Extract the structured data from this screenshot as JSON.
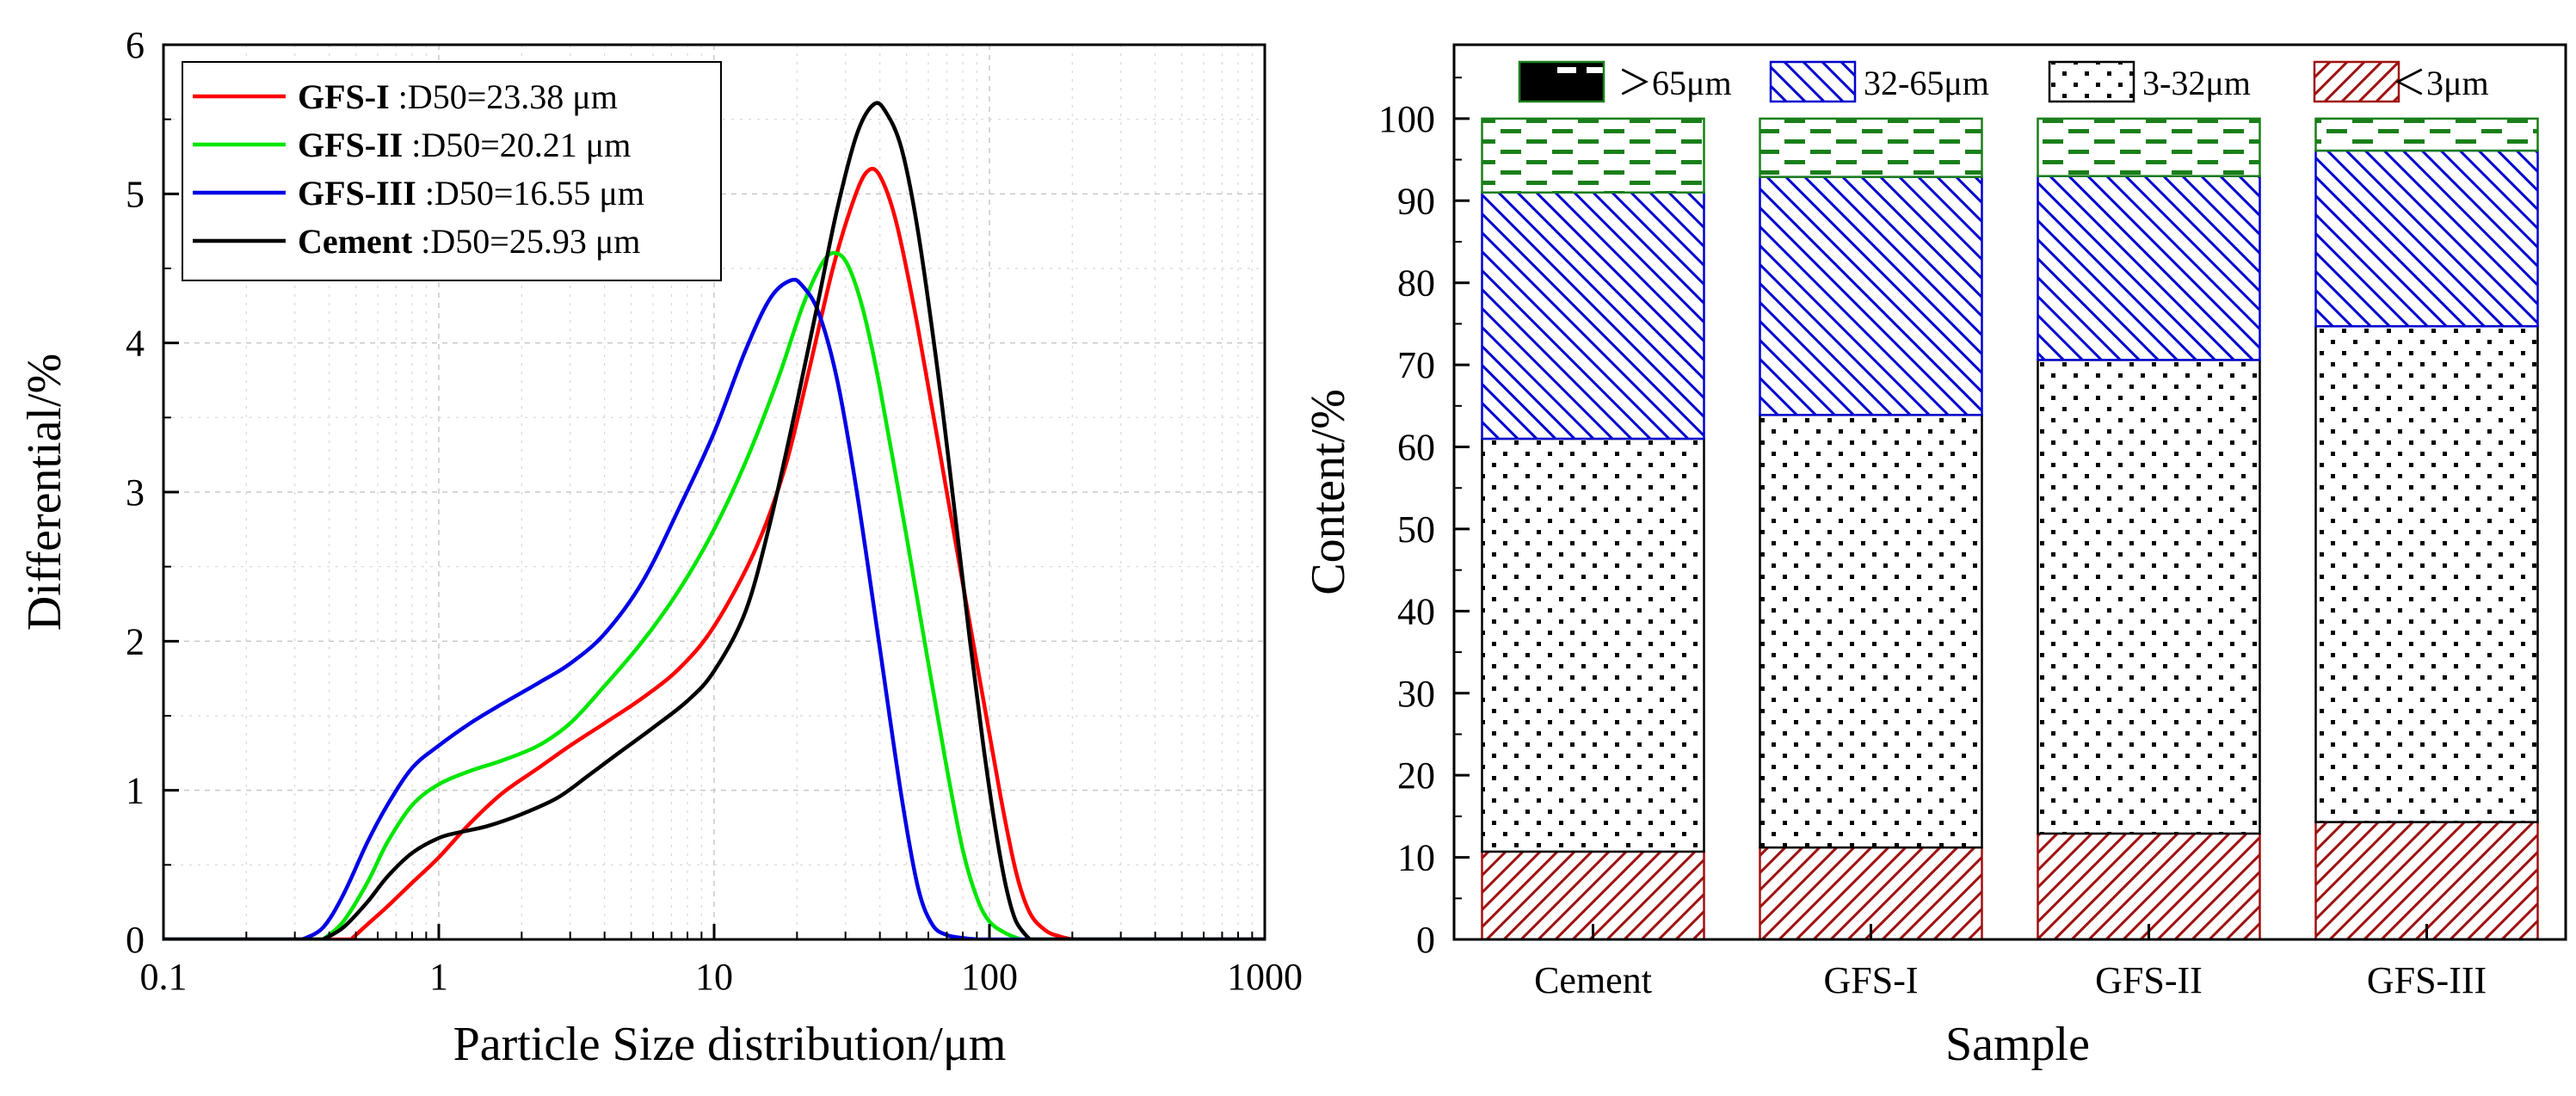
{
  "colors": {
    "gfs1": "#ff0000",
    "gfs2": "#00e600",
    "gfs3": "#0000e6",
    "cement": "#000000",
    "pattern_gt65": "#1a7f1a",
    "pattern_32_65": "#0000d0",
    "pattern_3_32": "#000000",
    "pattern_lt3": "#a01010"
  },
  "chart_data": [
    {
      "type": "line",
      "xscale": "log",
      "xlabel": "Particle Size distribution/μm",
      "ylabel": "Differential/%",
      "xlim": [
        0.1,
        1000
      ],
      "ylim": [
        0,
        6
      ],
      "xticks": [
        "0.1",
        "1",
        "10",
        "100",
        "1000"
      ],
      "yticks": [
        "0",
        "1",
        "2",
        "3",
        "4",
        "5",
        "6"
      ],
      "legend": [
        {
          "key": "gfs1",
          "name": "GFS-I",
          "note": " :D50=23.38 μm"
        },
        {
          "key": "gfs2",
          "name": "GFS-II",
          "note": " :D50=20.21 μm"
        },
        {
          "key": "gfs3",
          "name": "GFS-III",
          "note": " :D50=16.55 μm"
        },
        {
          "key": "cement",
          "name": "Cement",
          "note": " :D50=25.93 μm"
        }
      ],
      "series": [
        {
          "key": "gfs1",
          "name": "GFS-I",
          "x": [
            0.48,
            0.55,
            0.65,
            0.8,
            1.0,
            1.3,
            1.7,
            2.3,
            3.0,
            4.0,
            5.5,
            7.5,
            10,
            14,
            18,
            22,
            27,
            32,
            36,
            40,
            46,
            55,
            70,
            90,
            110,
            125,
            140,
            160,
            180,
            200
          ],
          "y": [
            0,
            0.1,
            0.22,
            0.38,
            0.55,
            0.78,
            0.98,
            1.15,
            1.3,
            1.45,
            1.62,
            1.82,
            2.1,
            2.6,
            3.15,
            3.8,
            4.5,
            4.95,
            5.15,
            5.12,
            4.8,
            4.1,
            3.0,
            1.85,
            0.95,
            0.45,
            0.18,
            0.06,
            0.02,
            0
          ]
        },
        {
          "key": "gfs2",
          "name": "GFS-II",
          "x": [
            0.38,
            0.45,
            0.55,
            0.65,
            0.8,
            1.0,
            1.3,
            1.7,
            2.3,
            3.0,
            4.0,
            5.5,
            7.5,
            10,
            13,
            17,
            21,
            25,
            28,
            31,
            35,
            40,
            50,
            60,
            70,
            80,
            90,
            100,
            115,
            130
          ],
          "y": [
            0,
            0.12,
            0.38,
            0.65,
            0.9,
            1.04,
            1.13,
            1.2,
            1.3,
            1.45,
            1.7,
            2.0,
            2.35,
            2.75,
            3.2,
            3.75,
            4.25,
            4.55,
            4.6,
            4.5,
            4.2,
            3.7,
            2.7,
            1.85,
            1.15,
            0.6,
            0.28,
            0.12,
            0.04,
            0
          ]
        },
        {
          "key": "gfs3",
          "name": "GFS-III",
          "x": [
            0.32,
            0.38,
            0.45,
            0.55,
            0.65,
            0.8,
            1.0,
            1.3,
            1.7,
            2.3,
            3.0,
            4.0,
            5.5,
            7.5,
            10,
            13,
            16,
            19,
            21,
            24,
            28,
            33,
            40,
            48,
            55,
            62,
            70,
            80,
            90
          ],
          "y": [
            0,
            0.08,
            0.3,
            0.65,
            0.9,
            1.15,
            1.3,
            1.45,
            1.58,
            1.72,
            1.85,
            2.05,
            2.4,
            2.9,
            3.4,
            3.95,
            4.3,
            4.42,
            4.38,
            4.2,
            3.75,
            3.0,
            1.95,
            0.95,
            0.35,
            0.1,
            0.03,
            0.01,
            0
          ]
        },
        {
          "key": "cement",
          "name": "Cement",
          "x": [
            0.38,
            0.45,
            0.55,
            0.65,
            0.8,
            1.0,
            1.2,
            1.5,
            2.0,
            2.7,
            3.5,
            4.5,
            6.0,
            8.0,
            10,
            13,
            16,
            20,
            24,
            28,
            33,
            38,
            42,
            48,
            55,
            65,
            75,
            85,
            95,
            105,
            115,
            125,
            140
          ],
          "y": [
            0,
            0.08,
            0.25,
            0.42,
            0.58,
            0.68,
            0.72,
            0.76,
            0.84,
            0.95,
            1.1,
            1.25,
            1.42,
            1.6,
            1.8,
            2.2,
            2.8,
            3.6,
            4.3,
            4.9,
            5.4,
            5.6,
            5.55,
            5.3,
            4.75,
            3.8,
            2.85,
            2.0,
            1.3,
            0.75,
            0.35,
            0.12,
            0
          ]
        }
      ]
    },
    {
      "type": "bar",
      "stacked": true,
      "xlabel": "Sample",
      "ylabel": "Content/%",
      "ylim": [
        0,
        109
      ],
      "yticks": [
        "0",
        "10",
        "20",
        "30",
        "40",
        "50",
        "60",
        "70",
        "80",
        "90",
        "100"
      ],
      "categories": [
        "Cement",
        "GFS-I",
        "GFS-II",
        "GFS-III"
      ],
      "series": [
        {
          "key": "lt3",
          "name": "＜3μm",
          "pattern": "diag-right",
          "values": [
            10.7,
            11.2,
            12.9,
            14.3
          ]
        },
        {
          "key": "m3_32",
          "name": "3-32μm",
          "pattern": "dots",
          "values": [
            50.3,
            52.7,
            57.7,
            60.4
          ]
        },
        {
          "key": "m32_65",
          "name": "32-65μm",
          "pattern": "diag-left",
          "values": [
            30.0,
            29.0,
            22.4,
            21.4
          ]
        },
        {
          "key": "gt65",
          "name": "＞65μm",
          "pattern": "dashes",
          "values": [
            9.0,
            7.1,
            7.0,
            3.9
          ]
        }
      ],
      "legend": [
        {
          "key": "gt65",
          "name": "＞65μm"
        },
        {
          "key": "m32_65",
          "name": "32-65μm"
        },
        {
          "key": "m3_32",
          "name": "3-32μm"
        },
        {
          "key": "lt3",
          "name": "＜3μm"
        }
      ]
    }
  ]
}
